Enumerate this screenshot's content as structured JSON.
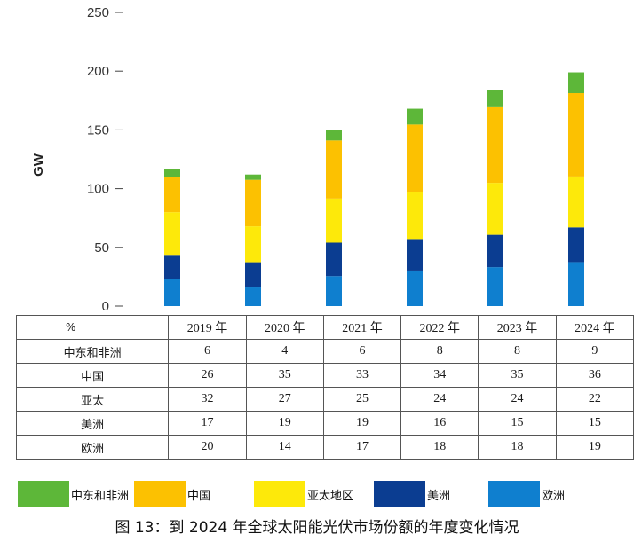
{
  "chart_data": {
    "type": "bar",
    "stacked": true,
    "ylabel": "GW",
    "ylim": [
      0,
      250
    ],
    "yticks": [
      0,
      50,
      100,
      150,
      200,
      250
    ],
    "categories": [
      "2019 年",
      "2020 年",
      "2021 年",
      "2022 年",
      "2023 年",
      "2024 年"
    ],
    "totals": [
      117,
      112,
      150,
      168,
      184,
      199
    ],
    "series": [
      {
        "name": "欧洲",
        "color": "#0f7fcf"
      },
      {
        "name": "美洲",
        "color": "#0b3d91"
      },
      {
        "name": "亚太地区",
        "color": "#fde90a"
      },
      {
        "name": "中国",
        "color": "#fcc101"
      },
      {
        "name": "中东和非洲",
        "color": "#5db739"
      }
    ],
    "legend_position": "bottom"
  },
  "table": {
    "corner": "%",
    "columns": [
      "2019 年",
      "2020 年",
      "2021 年",
      "2022 年",
      "2023 年",
      "2024 年"
    ],
    "rows": [
      {
        "label": "中东和非洲",
        "values": [
          "6",
          "4",
          "6",
          "8",
          "8",
          "9"
        ]
      },
      {
        "label": "中国",
        "values": [
          "26",
          "35",
          "33",
          "34",
          "35",
          "36"
        ]
      },
      {
        "label": "亚太",
        "values": [
          "32",
          "27",
          "25",
          "24",
          "24",
          "22"
        ]
      },
      {
        "label": "美洲",
        "values": [
          "17",
          "19",
          "19",
          "16",
          "15",
          "15"
        ]
      },
      {
        "label": "欧洲",
        "values": [
          "20",
          "14",
          "17",
          "18",
          "18",
          "19"
        ]
      }
    ]
  },
  "legend": [
    {
      "label": "中东和非洲",
      "color": "#5db739"
    },
    {
      "label": "中国",
      "color": "#fcc101"
    },
    {
      "label": "亚太地区",
      "color": "#fde90a"
    },
    {
      "label": "美洲",
      "color": "#0b3d91"
    },
    {
      "label": "欧洲",
      "color": "#0f7fcf"
    }
  ],
  "caption": "图 13：到 2024 年全球太阳能光伏市场份额的年度变化情况"
}
